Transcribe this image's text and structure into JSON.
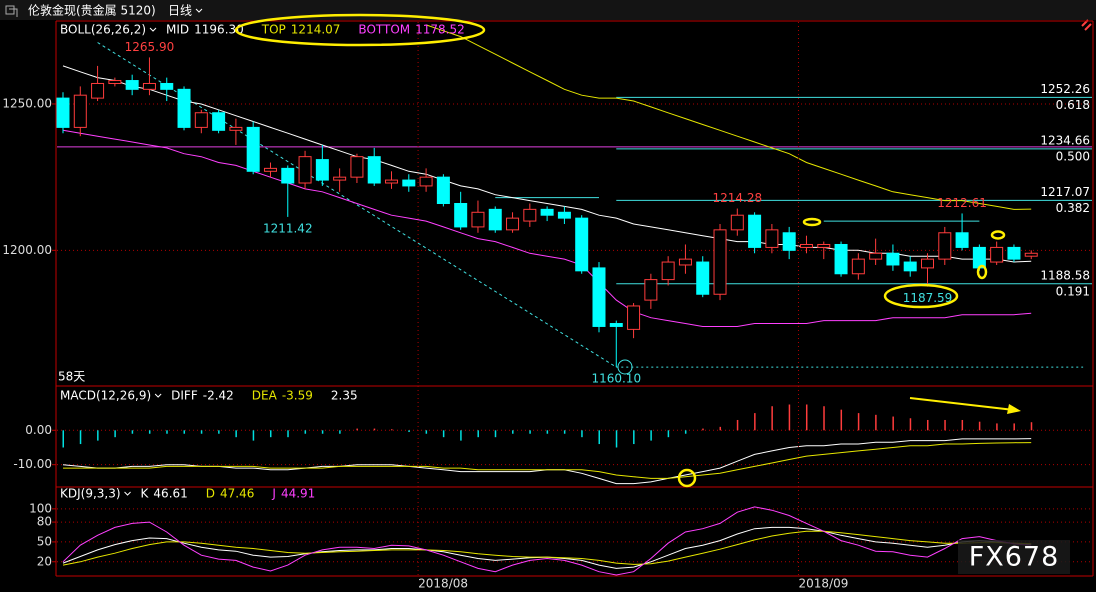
{
  "toolbar": {
    "title": "伦敦金现(贵金属 5120)",
    "period": "日线"
  },
  "watermark": "FX678",
  "chart_data": [
    {
      "type": "candlestick",
      "title": "BOLL(26,26,2)",
      "categories": [
        null,
        null,
        null,
        null,
        null,
        null,
        null,
        null,
        null,
        null,
        null,
        null,
        null,
        null,
        null,
        null,
        null,
        null,
        null,
        null,
        null,
        "2018/08",
        null,
        null,
        null,
        null,
        null,
        null,
        null,
        null,
        null,
        null,
        null,
        null,
        null,
        null,
        null,
        null,
        null,
        null,
        null,
        null,
        null,
        "2018/09",
        null,
        null,
        null,
        null,
        null,
        null,
        null,
        null,
        null,
        null,
        null,
        null,
        null
      ],
      "open": [
        1252,
        1242,
        1252,
        1257,
        1258,
        1255,
        1257,
        1255,
        1242,
        1247,
        1241,
        1242,
        1227,
        1228,
        1223,
        1231,
        1224,
        1225,
        1232,
        1223,
        1224,
        1222,
        1225,
        1216,
        1208,
        1214,
        1207,
        1210,
        1214,
        1213,
        1211,
        1194,
        1175,
        1173,
        1183,
        1190,
        1195,
        1196,
        1185,
        1207,
        1212,
        1201,
        1206,
        1201,
        1201,
        1202,
        1192,
        1197,
        1199,
        1196,
        1194,
        1197,
        1206,
        1201,
        1196,
        1201,
        1198
      ],
      "high": [
        1254,
        1256,
        1263,
        1259,
        1260,
        1265.9,
        1259,
        1256,
        1248,
        1248,
        1245,
        1244,
        1230,
        1229,
        1234,
        1236,
        1228,
        1233,
        1235,
        1227,
        1226,
        1228,
        1226,
        1220,
        1217,
        1215,
        1213,
        1216,
        1215,
        1215,
        1212,
        1196,
        1176,
        1182,
        1192,
        1198,
        1202,
        1198,
        1209,
        1214.28,
        1213,
        1209,
        1208,
        1205,
        1203,
        1203,
        1199,
        1204,
        1202,
        1198,
        1199,
        1208,
        1212.61,
        1202,
        1203,
        1202,
        1200
      ],
      "low": [
        1240,
        1239,
        1251,
        1256,
        1253,
        1253,
        1251,
        1241,
        1240,
        1240,
        1236,
        1226,
        1225,
        1211.42,
        1221,
        1222,
        1220,
        1223,
        1222,
        1221,
        1220,
        1220,
        1215,
        1207,
        1206,
        1206,
        1206,
        1208,
        1210,
        1209,
        1192,
        1172,
        1160.1,
        1170,
        1180,
        1188,
        1192,
        1184,
        1183,
        1205,
        1199,
        1199,
        1197,
        1199,
        1197,
        1191,
        1190,
        1195,
        1193,
        1191,
        1187.59,
        1195,
        1200,
        1193,
        1195,
        1196,
        1197
      ],
      "close": [
        1242,
        1253,
        1257,
        1258,
        1255,
        1257,
        1255,
        1242,
        1247,
        1241,
        1242,
        1227,
        1228,
        1223,
        1232,
        1224,
        1225,
        1232,
        1223,
        1224,
        1222,
        1225,
        1216,
        1208,
        1213,
        1207,
        1211,
        1214,
        1212,
        1211,
        1193,
        1174,
        1174,
        1181,
        1190,
        1196,
        1197,
        1185,
        1207,
        1212,
        1201,
        1207,
        1200,
        1202,
        1202,
        1192,
        1197,
        1199,
        1195,
        1193,
        1197,
        1206,
        1201,
        1194,
        1201,
        1197,
        1199
      ],
      "up_color": "#ff3c3c",
      "down_color": "#00ffff",
      "series": [
        {
          "name": "MID",
          "color": "#ffffff",
          "value_label": "1196.30",
          "values": [
            1263,
            1261,
            1259,
            1258,
            1256,
            1255,
            1253,
            1251,
            1250,
            1248,
            1246,
            1244,
            1242,
            1240,
            1238,
            1236,
            1234,
            1232,
            1231,
            1229,
            1227,
            1226,
            1224,
            1222,
            1221,
            1219,
            1218,
            1217,
            1216,
            1215,
            1214,
            1212,
            1211,
            1209,
            1208,
            1207,
            1206,
            1205,
            1204,
            1203,
            1203,
            1202,
            1202,
            1201,
            1201,
            1200,
            1200,
            1199,
            1199,
            1198,
            1198,
            1198,
            1197,
            1197,
            1197,
            1196,
            1196.3
          ]
        },
        {
          "name": "TOP",
          "color": "#e6e600",
          "value_label": "1214.07",
          "values": [
            null,
            null,
            null,
            null,
            null,
            null,
            null,
            null,
            null,
            null,
            null,
            null,
            null,
            null,
            null,
            null,
            null,
            null,
            null,
            null,
            null,
            1277,
            1275,
            1273,
            1270,
            1267,
            1264,
            1261,
            1258,
            1255,
            1253,
            1252,
            1252,
            1251,
            1249,
            1247,
            1245,
            1243,
            1241,
            1239,
            1237,
            1235,
            1233,
            1230,
            1228,
            1226,
            1224,
            1222,
            1220,
            1219,
            1218,
            1217,
            1217,
            1216,
            1215,
            1214,
            1214.07
          ]
        },
        {
          "name": "BOTTOM",
          "color": "#ff40ff",
          "value_label": "1178.52",
          "values": [
            1241,
            1240,
            1239,
            1238,
            1237,
            1236,
            1235,
            1233,
            1232,
            1230,
            1229,
            1227,
            1225,
            1223,
            1221,
            1220,
            1218,
            1216,
            1214,
            1212,
            1211,
            1210,
            1208,
            1206,
            1204,
            1203,
            1201,
            1199,
            1198,
            1197,
            1195,
            1189,
            1183,
            1179,
            1177,
            1176,
            1175,
            1174,
            1174,
            1174,
            1175,
            1175,
            1175,
            1175,
            1176,
            1176,
            1176,
            1176,
            1177,
            1177,
            1177,
            1177,
            1178,
            1178,
            1178,
            1178,
            1178.52
          ]
        }
      ],
      "ylim": [
        1154,
        1278
      ],
      "yticks": [
        {
          "value": 1200,
          "label": "1200.00"
        },
        {
          "value": 1250,
          "label": "1250.00"
        }
      ],
      "grid": true,
      "annotations": [
        {
          "label": "1265.90",
          "value": 1265.9,
          "at": 5,
          "color": "#ff4040"
        },
        {
          "label": "1211.42",
          "value": 1211.42,
          "at": 13,
          "color": "#40e0e0"
        },
        {
          "label": "1214.28",
          "value": 1214.28,
          "at": 39,
          "color": "#ff4040"
        },
        {
          "label": "1212.61",
          "value": 1212.61,
          "at": 52,
          "color": "#ff4040"
        },
        {
          "label": "1187.59",
          "value": 1187.59,
          "at": 50,
          "color": "#40e0e0"
        },
        {
          "label": "1160.10",
          "value": 1160.1,
          "at": 32,
          "color": "#40e0e0"
        }
      ],
      "span_label": "58天",
      "fib_from": 32,
      "fib_levels": [
        {
          "price": 1252.26,
          "ratio": 0.618
        },
        {
          "price": 1234.66,
          "ratio": {
            "value": 0.5,
            "label": "0.500"
          }
        },
        {
          "price": 1217.07,
          "ratio": 0.382
        },
        {
          "price": 1188.58,
          "ratio": 0.191
        }
      ],
      "levels": [
        {
          "value": 1218,
          "from": 25,
          "to": 31
        },
        {
          "value": 1210,
          "from": 44,
          "to": 53
        },
        {
          "value": 1160.1,
          "from": 32,
          "to": 59,
          "dashed": true
        }
      ],
      "trendline": {
        "at": [
          2,
          32
        ],
        "values": [
          1271,
          1160.1
        ]
      }
    },
    {
      "type": "bar_line",
      "title": "MACD(12,26,9)",
      "up_color": "#ff3c3c",
      "down_color": "#00e0e0",
      "series": [
        {
          "name": "DIFF",
          "color": "#ffffff",
          "values": [
            -10,
            -10.5,
            -11,
            -11,
            -10.5,
            -10.5,
            -10,
            -10,
            -10.5,
            -10.5,
            -11,
            -11,
            -11.5,
            -11.5,
            -11,
            -10.5,
            -10.5,
            -10,
            -10,
            -10,
            -10.5,
            -11,
            -11.5,
            -12,
            -12,
            -12,
            -12,
            -12,
            -11.5,
            -11.5,
            -12.5,
            -14,
            -15.5,
            -15.5,
            -15,
            -14,
            -13,
            -12,
            -11,
            -9,
            -7,
            -6,
            -5,
            -4.5,
            -4.5,
            -4,
            -4,
            -3.5,
            -3.5,
            -3,
            -3,
            -3,
            -2.5,
            -2.5,
            -2.5,
            -2.5,
            -2.42
          ]
        },
        {
          "name": "DEA",
          "color": "#e6e600",
          "values": [
            -11,
            -11,
            -11,
            -11,
            -11,
            -11,
            -10.5,
            -10.5,
            -10.5,
            -10.5,
            -10.5,
            -10.5,
            -11,
            -11,
            -11,
            -11,
            -10.5,
            -10.5,
            -10.5,
            -10.5,
            -10.5,
            -10.5,
            -11,
            -11,
            -11.5,
            -11.5,
            -11.5,
            -11.5,
            -11.5,
            -11.5,
            -11.5,
            -12,
            -13,
            -13.5,
            -14,
            -14,
            -13.5,
            -13,
            -12.5,
            -11.5,
            -10.5,
            -9.5,
            -8.5,
            -7.5,
            -7,
            -6.5,
            -6,
            -5.5,
            -5,
            -4.5,
            -4.5,
            -4,
            -4,
            -3.8,
            -3.7,
            -3.6,
            -3.59
          ]
        },
        {
          "kind": "bar",
          "color": "#ffffff",
          "values": [
            -5,
            -4,
            -3,
            -2,
            -1,
            -1,
            -1,
            -1,
            -1,
            -1,
            -2,
            -3,
            -2,
            -2,
            -1,
            -1,
            -1,
            0.5,
            0.5,
            0.3,
            -0.5,
            -1,
            -2,
            -3,
            -2,
            -2,
            -1,
            -1,
            -1,
            -1,
            -2,
            -4,
            -5,
            -4,
            -3,
            -2,
            -1,
            0.5,
            1,
            3,
            5,
            7,
            7.5,
            7.5,
            7,
            6,
            5,
            4.5,
            4,
            3.5,
            3,
            3,
            3,
            2.5,
            2,
            2,
            2.35
          ]
        }
      ],
      "ylim": [
        -16.2,
        12.3
      ],
      "yticks": [
        {
          "value": 0,
          "label": "0.00"
        },
        {
          "value": -10,
          "label": "-10.00"
        }
      ],
      "grid": true
    },
    {
      "type": "line",
      "title": "KDJ(9,3,3)",
      "series": [
        {
          "name": "K",
          "color": "#ffffff",
          "values": [
            18,
            28,
            38,
            46,
            52,
            56,
            55,
            48,
            42,
            38,
            36,
            30,
            27,
            28,
            32,
            35,
            37,
            38,
            38,
            40,
            40,
            38,
            35,
            30,
            25,
            22,
            24,
            26,
            27,
            25,
            22,
            15,
            10,
            12,
            20,
            30,
            40,
            45,
            52,
            62,
            70,
            72,
            72,
            70,
            66,
            60,
            55,
            50,
            48,
            45,
            42,
            45,
            50,
            52,
            50,
            48,
            46.61
          ]
        },
        {
          "name": "D",
          "color": "#e6e600",
          "values": [
            15,
            20,
            27,
            33,
            40,
            46,
            50,
            50,
            48,
            45,
            42,
            40,
            37,
            34,
            33,
            34,
            35,
            36,
            37,
            38,
            38,
            38,
            37,
            35,
            32,
            30,
            28,
            27,
            27,
            26,
            25,
            22,
            18,
            16,
            17,
            21,
            27,
            33,
            39,
            46,
            53,
            59,
            63,
            66,
            66,
            64,
            61,
            58,
            55,
            52,
            50,
            48,
            48,
            49,
            49,
            48,
            47.46
          ]
        },
        {
          "name": "J",
          "color": "#ff40ff",
          "values": [
            20,
            45,
            60,
            72,
            78,
            80,
            65,
            45,
            30,
            24,
            22,
            12,
            6,
            15,
            30,
            38,
            42,
            42,
            40,
            45,
            44,
            38,
            30,
            20,
            10,
            5,
            15,
            22,
            25,
            22,
            15,
            5,
            0,
            5,
            25,
            48,
            65,
            70,
            78,
            95,
            103,
            98,
            90,
            78,
            66,
            52,
            45,
            36,
            35,
            30,
            27,
            40,
            55,
            58,
            52,
            47,
            44.91
          ]
        }
      ],
      "ylim": [
        0,
        130
      ],
      "yticks": [
        20,
        50,
        80,
        100
      ],
      "grid": true
    }
  ]
}
